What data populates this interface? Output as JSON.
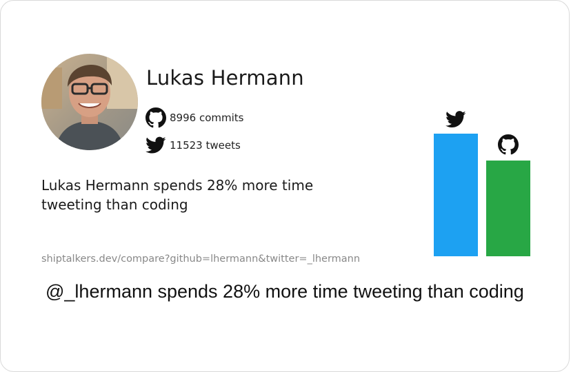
{
  "profile": {
    "name": "Lukas Hermann",
    "commits_text": "8996 commits",
    "tweets_text": "11523 tweets",
    "github_icon": "github-icon",
    "twitter_icon": "twitter-icon"
  },
  "summary": "Lukas Hermann spends 28% more time tweeting than coding",
  "url": "shiptalkers.dev/compare?github=lhermann&twitter=_lhermann",
  "caption": "@_lhermann spends 28% more time tweeting than coding",
  "colors": {
    "twitter": "#1da1f2",
    "github": "#28a745",
    "text": "#1a1a1a",
    "url": "#888888"
  },
  "chart_data": {
    "type": "bar",
    "categories": [
      "twitter",
      "github"
    ],
    "values": [
      11523,
      8996
    ],
    "icons": [
      "twitter-icon",
      "github-icon"
    ],
    "colors": [
      "#1da1f2",
      "#28a745"
    ]
  }
}
